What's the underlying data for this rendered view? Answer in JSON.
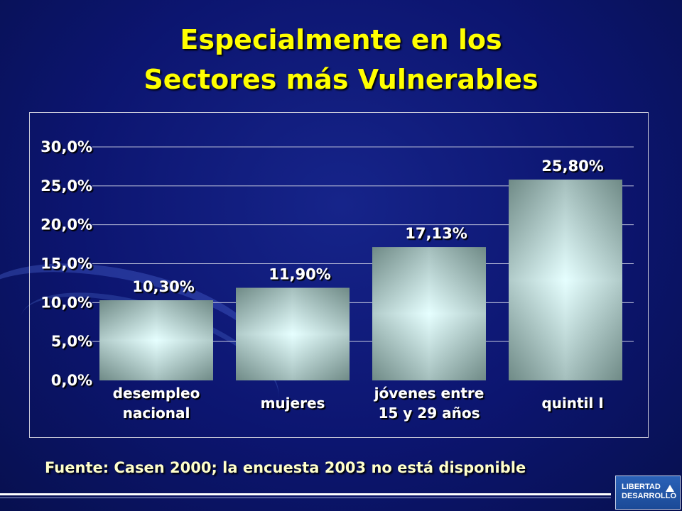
{
  "title_line1": "Especialmente en los",
  "title_line2": "Sectores más Vulnerables",
  "source_note": "Fuente: Casen 2000; la encuesta 2003 no está disponible",
  "logo": {
    "line1": "LIBERTAD",
    "line2": "DESARROLLO"
  },
  "colors": {
    "background": "#0c1570",
    "title": "#ffff00",
    "bar_edge": "#6f8a86",
    "bar_center": "#e6ffff"
  },
  "chart_data": {
    "type": "bar",
    "categories": [
      [
        "desempleo",
        "nacional"
      ],
      [
        "mujeres"
      ],
      [
        "jóvenes entre",
        "15 y 29 años"
      ],
      [
        "quintil I"
      ]
    ],
    "values": [
      10.3,
      11.9,
      17.13,
      25.8
    ],
    "value_labels": [
      "10,30%",
      "11,90%",
      "17,13%",
      "25,80%"
    ],
    "y_ticks": [
      "0,0%",
      "5,0%",
      "10,0%",
      "15,0%",
      "20,0%",
      "25,0%",
      "30,0%"
    ],
    "ylim": [
      0,
      30
    ],
    "grid": true
  }
}
